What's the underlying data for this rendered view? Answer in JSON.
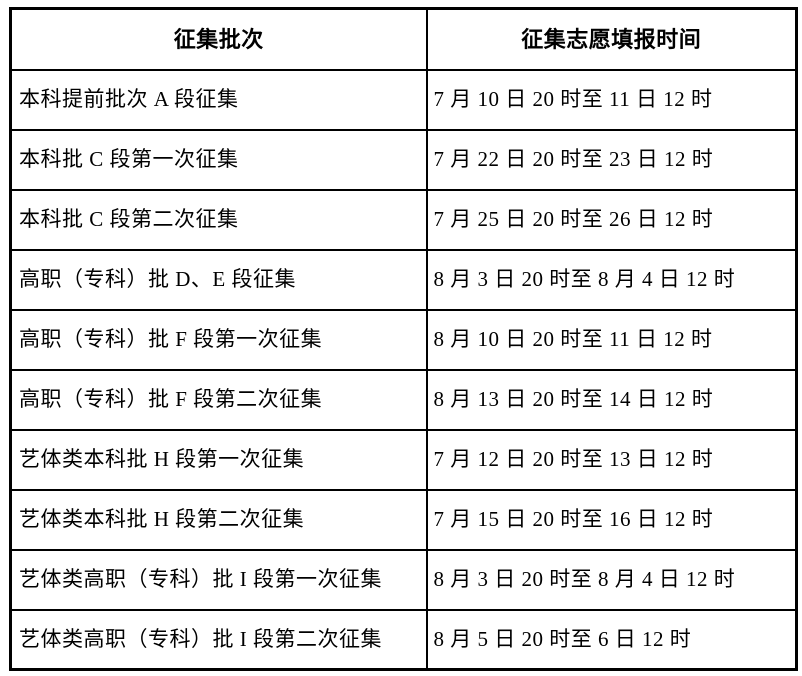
{
  "colors": {
    "background": "#ffffff",
    "border": "#000000",
    "text": "#000000"
  },
  "chart_data": {
    "type": "table",
    "columns": [
      "征集批次",
      "征集志愿填报时间"
    ],
    "rows": [
      [
        "本科提前批次 A 段征集",
        "7 月 10 日 20 时至 11 日 12 时"
      ],
      [
        "本科批 C 段第一次征集",
        "7 月 22 日 20 时至 23 日 12 时"
      ],
      [
        "本科批 C 段第二次征集",
        "7 月 25 日 20 时至 26 日 12 时"
      ],
      [
        "高职（专科）批 D、E 段征集",
        "8 月 3 日 20 时至 8 月 4 日 12 时"
      ],
      [
        "高职（专科）批 F 段第一次征集",
        "8 月 10 日 20 时至 11 日 12 时"
      ],
      [
        "高职（专科）批 F 段第二次征集",
        "8 月 13 日 20 时至 14 日 12 时"
      ],
      [
        "艺体类本科批 H 段第一次征集",
        "7 月 12 日 20 时至 13 日 12 时"
      ],
      [
        "艺体类本科批 H 段第二次征集",
        "7 月 15 日 20 时至 16 日 12 时"
      ],
      [
        "艺体类高职（专科）批 I 段第一次征集",
        "8 月 3 日 20 时至 8 月 4 日 12 时"
      ],
      [
        "艺体类高职（专科）批 I 段第二次征集",
        "8 月 5 日 20 时至 6 日 12 时"
      ]
    ]
  }
}
